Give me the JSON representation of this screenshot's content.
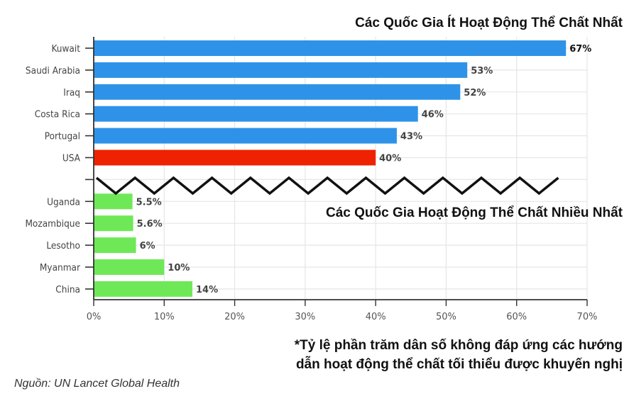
{
  "titles": {
    "top": "Các Quốc Gia Ít Hoạt Động Thể Chất Nhất",
    "bottom": "Các Quốc Gia Hoạt Động Thể Chất Nhiều Nhất"
  },
  "footnote": {
    "line1": "*Tỷ lệ phần trăm dân số không đáp ứng các hướng",
    "line2": "dẫn hoạt động thể chất tối thiểu được khuyến nghị"
  },
  "source": "Nguồn: UN Lancet Global Health",
  "colors": {
    "least_active": "#2E93E8",
    "usa": "#EE2200",
    "most_active": "#6FE857",
    "grid": "#E6E6E6",
    "axis": "#333333"
  },
  "chart_data": {
    "type": "bar",
    "orientation": "horizontal",
    "title": "Các Quốc Gia Ít Hoạt Động Thể Chất Nhất / Các Quốc Gia Hoạt Động Thể Chất Nhiều Nhất",
    "xlabel": "",
    "ylabel": "",
    "xlim": [
      0,
      70
    ],
    "x_ticks": [
      "0%",
      "10%",
      "20%",
      "30%",
      "40%",
      "50%",
      "60%",
      "70%"
    ],
    "grid": true,
    "axis_break_after_index": 5,
    "categories": [
      "Kuwait",
      "Saudi Arabia",
      "Iraq",
      "Costa Rica",
      "Portugal",
      "USA",
      "Uganda",
      "Mozambique",
      "Lesotho",
      "Myanmar",
      "China"
    ],
    "values": [
      67,
      53,
      52,
      46,
      43,
      40,
      5.5,
      5.6,
      6,
      10,
      14
    ],
    "value_labels": [
      "67%",
      "53%",
      "52%",
      "46%",
      "43%",
      "40%",
      "5.5%",
      "5.6%",
      "6%",
      "10%",
      "14%"
    ],
    "groups": [
      "least_active",
      "least_active",
      "least_active",
      "least_active",
      "least_active",
      "usa",
      "most_active",
      "most_active",
      "most_active",
      "most_active",
      "most_active"
    ]
  }
}
